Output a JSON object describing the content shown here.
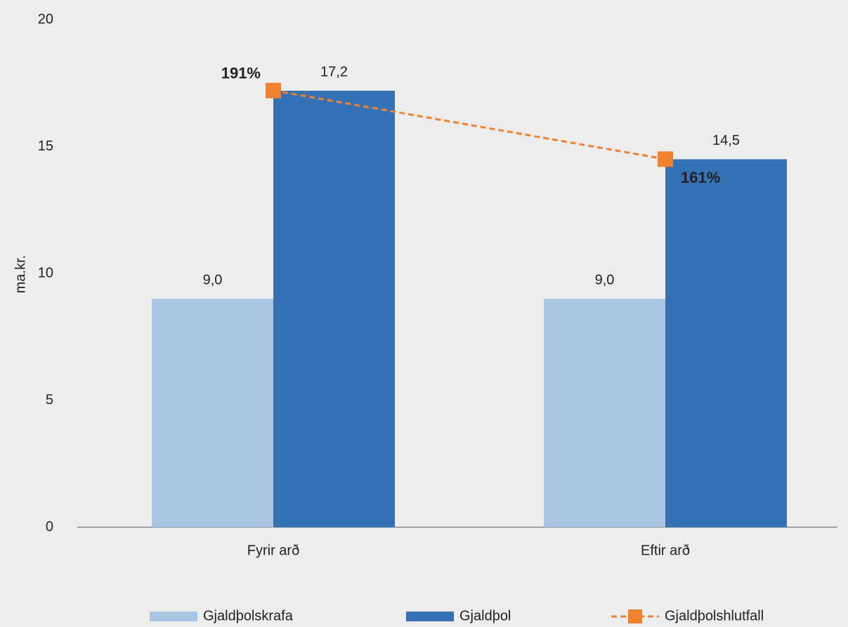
{
  "chart_data": {
    "type": "bar",
    "y_label": "ma.kr.",
    "categories": [
      "Fyrir arð",
      "Eftir arð"
    ],
    "series": [
      {
        "name": "Gjaldþolskrafa",
        "color": "#a9c5e4",
        "values": [
          9.0,
          9.0
        ],
        "value_labels": [
          "9,0",
          "9,0"
        ]
      },
      {
        "name": "Gjaldþol",
        "color": "#3571b5",
        "values": [
          17.2,
          14.5
        ],
        "value_labels": [
          "17,2",
          "14,5"
        ]
      },
      {
        "name": "Gjaldþolshlutfall",
        "type": "line",
        "axis": "y2",
        "color": "#f0812f",
        "values": [
          191,
          161
        ],
        "value_labels": [
          "191%",
          "161%"
        ]
      }
    ],
    "ylim": [
      0,
      20
    ],
    "yticks": [
      0,
      5,
      10,
      15,
      20
    ],
    "y2lim": [
      0,
      222
    ],
    "legend": "bottom"
  }
}
